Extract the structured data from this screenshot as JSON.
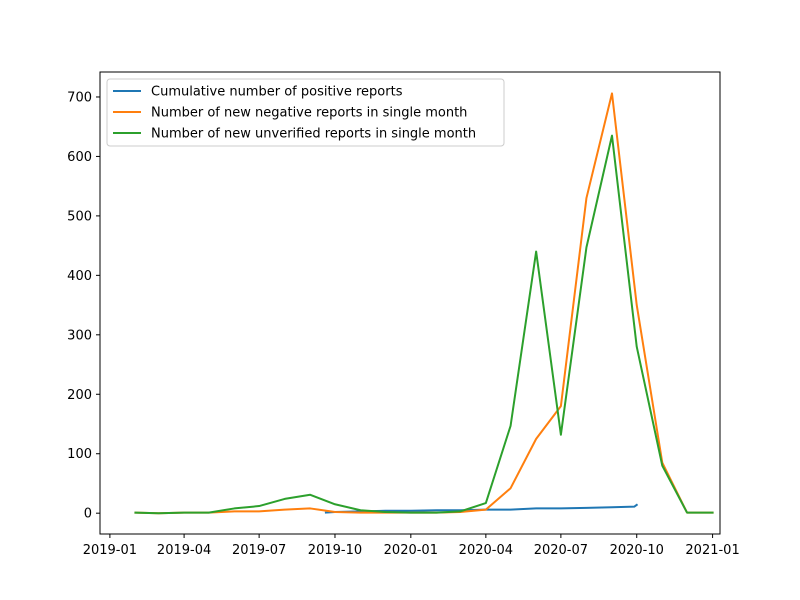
{
  "chart_data": {
    "type": "line",
    "title": "",
    "xlabel": "",
    "ylabel": "",
    "x_axis": {
      "type": "date",
      "range": [
        "2018-12-20",
        "2021-01-10"
      ],
      "ticks": [
        "2019-01-01",
        "2019-04-01",
        "2019-07-01",
        "2019-10-01",
        "2020-01-01",
        "2020-04-01",
        "2020-07-01",
        "2020-10-01",
        "2021-01-01"
      ],
      "tick_labels": [
        "2019-01",
        "2019-04",
        "2019-07",
        "2019-10",
        "2020-01",
        "2020-04",
        "2020-07",
        "2020-10",
        "2021-01"
      ]
    },
    "y_axis": {
      "range": [
        -35,
        742
      ],
      "ticks": [
        0,
        100,
        200,
        300,
        400,
        500,
        600,
        700
      ],
      "tick_labels": [
        "0",
        "100",
        "200",
        "300",
        "400",
        "500",
        "600",
        "700"
      ]
    },
    "grid": false,
    "legend_position": "top-left",
    "series": [
      {
        "name": "Cumulative number of positive reports",
        "color": "#1f77b4",
        "points": [
          [
            "2019-09-20",
            1
          ],
          [
            "2019-10-01",
            2
          ],
          [
            "2019-11-01",
            3
          ],
          [
            "2019-12-01",
            4
          ],
          [
            "2020-01-01",
            4
          ],
          [
            "2020-02-01",
            5
          ],
          [
            "2020-03-01",
            5
          ],
          [
            "2020-04-01",
            6
          ],
          [
            "2020-05-01",
            6
          ],
          [
            "2020-06-01",
            8
          ],
          [
            "2020-07-01",
            8
          ],
          [
            "2020-08-01",
            9
          ],
          [
            "2020-09-01",
            10
          ],
          [
            "2020-09-28",
            11
          ],
          [
            "2020-10-01",
            14
          ]
        ]
      },
      {
        "name": "Number of new negative reports in single month",
        "color": "#ff7f0e",
        "points": [
          [
            "2019-02-01",
            1
          ],
          [
            "2019-03-01",
            0
          ],
          [
            "2019-04-01",
            1
          ],
          [
            "2019-05-01",
            1
          ],
          [
            "2019-06-01",
            3
          ],
          [
            "2019-07-01",
            3
          ],
          [
            "2019-08-01",
            6
          ],
          [
            "2019-09-01",
            8
          ],
          [
            "2019-10-01",
            2
          ],
          [
            "2019-11-01",
            1
          ],
          [
            "2019-12-01",
            1
          ],
          [
            "2020-01-01",
            1
          ],
          [
            "2020-02-01",
            1
          ],
          [
            "2020-03-01",
            2
          ],
          [
            "2020-04-01",
            6
          ],
          [
            "2020-05-01",
            42
          ],
          [
            "2020-06-01",
            125
          ],
          [
            "2020-07-01",
            180
          ],
          [
            "2020-08-01",
            530
          ],
          [
            "2020-09-01",
            706
          ],
          [
            "2020-10-01",
            350
          ],
          [
            "2020-11-01",
            85
          ],
          [
            "2020-12-01",
            1
          ],
          [
            "2021-01-01",
            1
          ]
        ]
      },
      {
        "name": "Number of new unverified reports in single month",
        "color": "#2ca02c",
        "points": [
          [
            "2019-02-01",
            1
          ],
          [
            "2019-03-01",
            0
          ],
          [
            "2019-04-01",
            1
          ],
          [
            "2019-05-01",
            1
          ],
          [
            "2019-06-01",
            8
          ],
          [
            "2019-07-01",
            12
          ],
          [
            "2019-08-01",
            24
          ],
          [
            "2019-09-01",
            31
          ],
          [
            "2019-10-01",
            15
          ],
          [
            "2019-11-01",
            5
          ],
          [
            "2019-12-01",
            2
          ],
          [
            "2020-01-01",
            1
          ],
          [
            "2020-02-01",
            1
          ],
          [
            "2020-03-01",
            3
          ],
          [
            "2020-04-01",
            17
          ],
          [
            "2020-05-01",
            147
          ],
          [
            "2020-06-01",
            440
          ],
          [
            "2020-07-01",
            132
          ],
          [
            "2020-08-01",
            447
          ],
          [
            "2020-09-01",
            635
          ],
          [
            "2020-10-01",
            280
          ],
          [
            "2020-11-01",
            80
          ],
          [
            "2020-12-01",
            1
          ],
          [
            "2021-01-01",
            1
          ]
        ]
      }
    ]
  }
}
